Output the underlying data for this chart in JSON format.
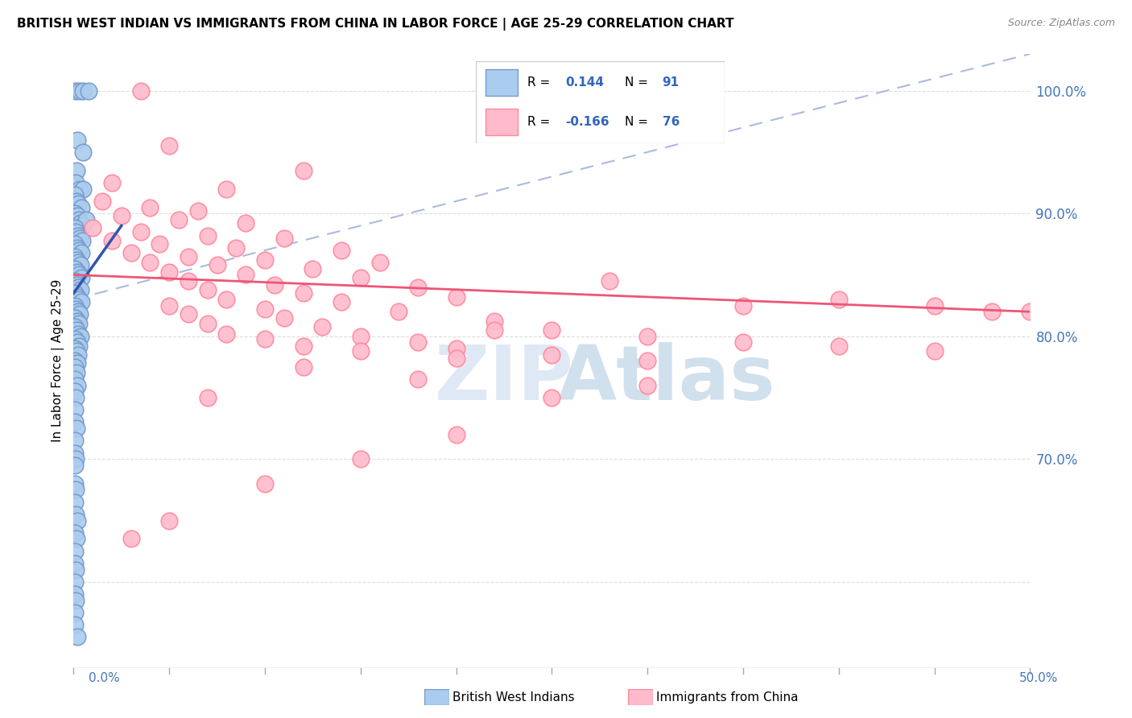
{
  "title": "BRITISH WEST INDIAN VS IMMIGRANTS FROM CHINA IN LABOR FORCE | AGE 25-29 CORRELATION CHART",
  "source": "Source: ZipAtlas.com",
  "ylabel": "In Labor Force | Age 25-29",
  "xmin": 0.0,
  "xmax": 50.0,
  "ymin": 53.0,
  "ymax": 103.0,
  "right_yticks": [
    70.0,
    80.0,
    90.0,
    100.0
  ],
  "right_ytick_labels": [
    "70.0%",
    "80.0%",
    "90.0%",
    "100.0%"
  ],
  "grid_yticks": [
    60.0,
    70.0,
    80.0,
    90.0,
    100.0
  ],
  "blue_color_face": "#AACCEE",
  "blue_color_edge": "#7799CC",
  "pink_color_face": "#FFBBCC",
  "pink_color_edge": "#FF8899",
  "blue_trend_x": [
    0.0,
    2.5
  ],
  "blue_trend_y": [
    83.5,
    89.0
  ],
  "pink_trend_x": [
    0.0,
    50.0
  ],
  "pink_trend_y": [
    85.0,
    82.0
  ],
  "diag_line_x": [
    0.0,
    50.0
  ],
  "diag_line_y": [
    83.0,
    103.0
  ],
  "blue_scatter": [
    [
      0.1,
      100.0
    ],
    [
      0.3,
      100.0
    ],
    [
      0.5,
      100.0
    ],
    [
      0.8,
      100.0
    ],
    [
      0.2,
      96.0
    ],
    [
      0.5,
      95.0
    ],
    [
      0.15,
      93.5
    ],
    [
      0.1,
      92.5
    ],
    [
      0.3,
      92.0
    ],
    [
      0.5,
      92.0
    ],
    [
      0.05,
      91.5
    ],
    [
      0.15,
      91.0
    ],
    [
      0.25,
      90.8
    ],
    [
      0.4,
      90.5
    ],
    [
      0.08,
      90.0
    ],
    [
      0.18,
      89.8
    ],
    [
      0.28,
      89.5
    ],
    [
      0.38,
      89.2
    ],
    [
      0.5,
      89.0
    ],
    [
      0.65,
      89.5
    ],
    [
      0.05,
      88.8
    ],
    [
      0.12,
      88.5
    ],
    [
      0.22,
      88.2
    ],
    [
      0.32,
      88.0
    ],
    [
      0.45,
      87.8
    ],
    [
      0.08,
      87.5
    ],
    [
      0.18,
      87.2
    ],
    [
      0.28,
      87.0
    ],
    [
      0.4,
      86.8
    ],
    [
      0.05,
      86.5
    ],
    [
      0.15,
      86.2
    ],
    [
      0.25,
      86.0
    ],
    [
      0.35,
      85.8
    ],
    [
      0.08,
      85.5
    ],
    [
      0.18,
      85.2
    ],
    [
      0.28,
      85.0
    ],
    [
      0.4,
      84.8
    ],
    [
      0.05,
      84.5
    ],
    [
      0.15,
      84.2
    ],
    [
      0.25,
      84.0
    ],
    [
      0.35,
      83.8
    ],
    [
      0.08,
      83.5
    ],
    [
      0.18,
      83.2
    ],
    [
      0.28,
      83.0
    ],
    [
      0.4,
      82.8
    ],
    [
      0.05,
      82.5
    ],
    [
      0.12,
      82.2
    ],
    [
      0.22,
      82.0
    ],
    [
      0.32,
      81.8
    ],
    [
      0.08,
      81.5
    ],
    [
      0.18,
      81.2
    ],
    [
      0.28,
      81.0
    ],
    [
      0.05,
      80.8
    ],
    [
      0.15,
      80.5
    ],
    [
      0.25,
      80.2
    ],
    [
      0.35,
      80.0
    ],
    [
      0.08,
      79.8
    ],
    [
      0.18,
      79.5
    ],
    [
      0.28,
      79.2
    ],
    [
      0.05,
      79.0
    ],
    [
      0.15,
      78.8
    ],
    [
      0.25,
      78.5
    ],
    [
      0.08,
      78.0
    ],
    [
      0.18,
      77.8
    ],
    [
      0.05,
      77.5
    ],
    [
      0.15,
      77.0
    ],
    [
      0.08,
      76.5
    ],
    [
      0.18,
      76.0
    ],
    [
      0.05,
      75.5
    ],
    [
      0.12,
      75.0
    ],
    [
      0.08,
      74.0
    ],
    [
      0.05,
      73.0
    ],
    [
      0.15,
      72.5
    ],
    [
      0.08,
      71.5
    ],
    [
      0.05,
      70.5
    ],
    [
      0.12,
      70.0
    ],
    [
      0.08,
      69.5
    ],
    [
      0.05,
      68.0
    ],
    [
      0.12,
      67.5
    ],
    [
      0.08,
      66.5
    ],
    [
      0.1,
      65.5
    ],
    [
      0.2,
      65.0
    ],
    [
      0.05,
      64.0
    ],
    [
      0.15,
      63.5
    ],
    [
      0.08,
      62.5
    ],
    [
      0.05,
      61.5
    ],
    [
      0.12,
      61.0
    ],
    [
      0.08,
      60.0
    ],
    [
      0.05,
      59.0
    ],
    [
      0.12,
      58.5
    ],
    [
      0.08,
      57.5
    ],
    [
      0.05,
      56.5
    ],
    [
      0.18,
      55.5
    ]
  ],
  "pink_scatter": [
    [
      3.5,
      100.0
    ],
    [
      5.0,
      95.5
    ],
    [
      12.0,
      93.5
    ],
    [
      2.0,
      92.5
    ],
    [
      8.0,
      92.0
    ],
    [
      1.5,
      91.0
    ],
    [
      4.0,
      90.5
    ],
    [
      6.5,
      90.2
    ],
    [
      2.5,
      89.8
    ],
    [
      5.5,
      89.5
    ],
    [
      9.0,
      89.2
    ],
    [
      1.0,
      88.8
    ],
    [
      3.5,
      88.5
    ],
    [
      7.0,
      88.2
    ],
    [
      11.0,
      88.0
    ],
    [
      2.0,
      87.8
    ],
    [
      4.5,
      87.5
    ],
    [
      8.5,
      87.2
    ],
    [
      14.0,
      87.0
    ],
    [
      3.0,
      86.8
    ],
    [
      6.0,
      86.5
    ],
    [
      10.0,
      86.2
    ],
    [
      16.0,
      86.0
    ],
    [
      4.0,
      86.0
    ],
    [
      7.5,
      85.8
    ],
    [
      12.5,
      85.5
    ],
    [
      5.0,
      85.2
    ],
    [
      9.0,
      85.0
    ],
    [
      15.0,
      84.8
    ],
    [
      6.0,
      84.5
    ],
    [
      10.5,
      84.2
    ],
    [
      18.0,
      84.0
    ],
    [
      7.0,
      83.8
    ],
    [
      12.0,
      83.5
    ],
    [
      20.0,
      83.2
    ],
    [
      8.0,
      83.0
    ],
    [
      14.0,
      82.8
    ],
    [
      5.0,
      82.5
    ],
    [
      10.0,
      82.2
    ],
    [
      17.0,
      82.0
    ],
    [
      6.0,
      81.8
    ],
    [
      11.0,
      81.5
    ],
    [
      22.0,
      81.2
    ],
    [
      7.0,
      81.0
    ],
    [
      13.0,
      80.8
    ],
    [
      25.0,
      80.5
    ],
    [
      8.0,
      80.2
    ],
    [
      15.0,
      80.0
    ],
    [
      30.0,
      80.0
    ],
    [
      10.0,
      79.8
    ],
    [
      18.0,
      79.5
    ],
    [
      35.0,
      79.5
    ],
    [
      12.0,
      79.2
    ],
    [
      20.0,
      79.0
    ],
    [
      40.0,
      79.2
    ],
    [
      15.0,
      78.8
    ],
    [
      25.0,
      78.5
    ],
    [
      45.0,
      78.8
    ],
    [
      20.0,
      78.2
    ],
    [
      30.0,
      78.0
    ],
    [
      48.0,
      82.0
    ],
    [
      35.0,
      82.5
    ],
    [
      40.0,
      83.0
    ],
    [
      45.0,
      82.5
    ],
    [
      50.0,
      82.0
    ],
    [
      25.0,
      75.0
    ],
    [
      30.0,
      76.0
    ],
    [
      20.0,
      72.0
    ],
    [
      15.0,
      70.0
    ],
    [
      10.0,
      68.0
    ],
    [
      5.0,
      65.0
    ],
    [
      3.0,
      63.5
    ],
    [
      7.0,
      75.0
    ],
    [
      12.0,
      77.5
    ],
    [
      18.0,
      76.5
    ],
    [
      22.0,
      80.5
    ],
    [
      28.0,
      84.5
    ]
  ],
  "background_color": "#FFFFFF",
  "grid_color": "#DDDDDD",
  "watermark_zip_color": "#C5D8EE",
  "watermark_atlas_color": "#9BBBD9"
}
